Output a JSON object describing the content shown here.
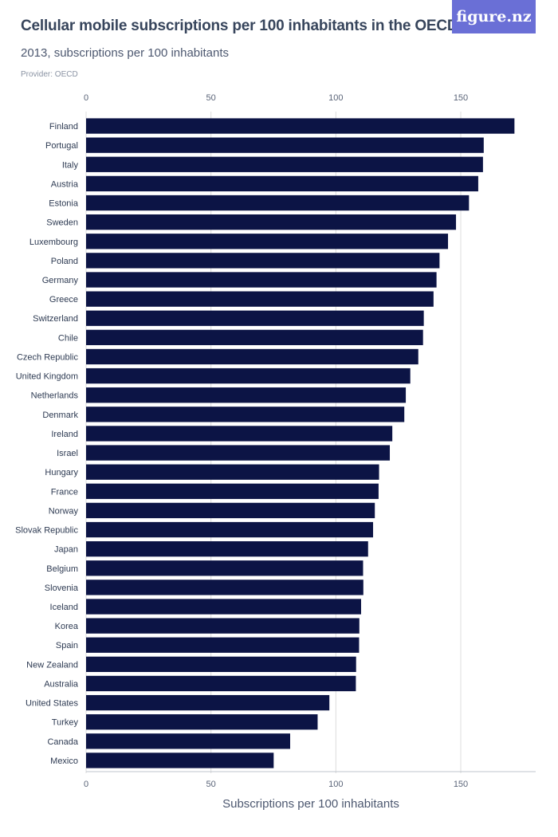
{
  "header": {
    "title": "Cellular mobile subscriptions per 100 inhabitants in the OECD",
    "subtitle": "2013, subscriptions per 100 inhabitants",
    "provider": "Provider: OECD",
    "logo_text": "figure.nz"
  },
  "colors": {
    "bar": "#0c1445",
    "grid": "#dcdcdc",
    "logo_bg": "#6a6fd6"
  },
  "chart_data": {
    "type": "bar",
    "orientation": "horizontal",
    "title": "Cellular mobile subscriptions per 100 inhabitants in the OECD",
    "subtitle": "2013, subscriptions per 100 inhabitants",
    "xlabel": "Subscriptions per 100 inhabitants",
    "ylabel": "",
    "xlim": [
      0,
      180
    ],
    "xticks": [
      0,
      50,
      100,
      150
    ],
    "grid": true,
    "categories": [
      "Finland",
      "Portugal",
      "Italy",
      "Austria",
      "Estonia",
      "Sweden",
      "Luxembourg",
      "Poland",
      "Germany",
      "Greece",
      "Switzerland",
      "Chile",
      "Czech Republic",
      "United Kingdom",
      "Netherlands",
      "Denmark",
      "Ireland",
      "Israel",
      "Hungary",
      "France",
      "Norway",
      "Slovak Republic",
      "Japan",
      "Belgium",
      "Slovenia",
      "Iceland",
      "Korea",
      "Spain",
      "New Zealand",
      "Australia",
      "United States",
      "Turkey",
      "Canada",
      "Mexico"
    ],
    "values": [
      171.5,
      159.2,
      158.9,
      157.0,
      153.3,
      148.1,
      144.9,
      141.5,
      140.3,
      139.1,
      135.2,
      134.9,
      133.0,
      129.8,
      128.0,
      127.4,
      122.6,
      121.6,
      117.3,
      117.1,
      115.6,
      114.9,
      112.9,
      110.9,
      111.0,
      110.1,
      109.4,
      109.3,
      108.1,
      108.0,
      97.4,
      92.7,
      81.7,
      75.1
    ]
  }
}
